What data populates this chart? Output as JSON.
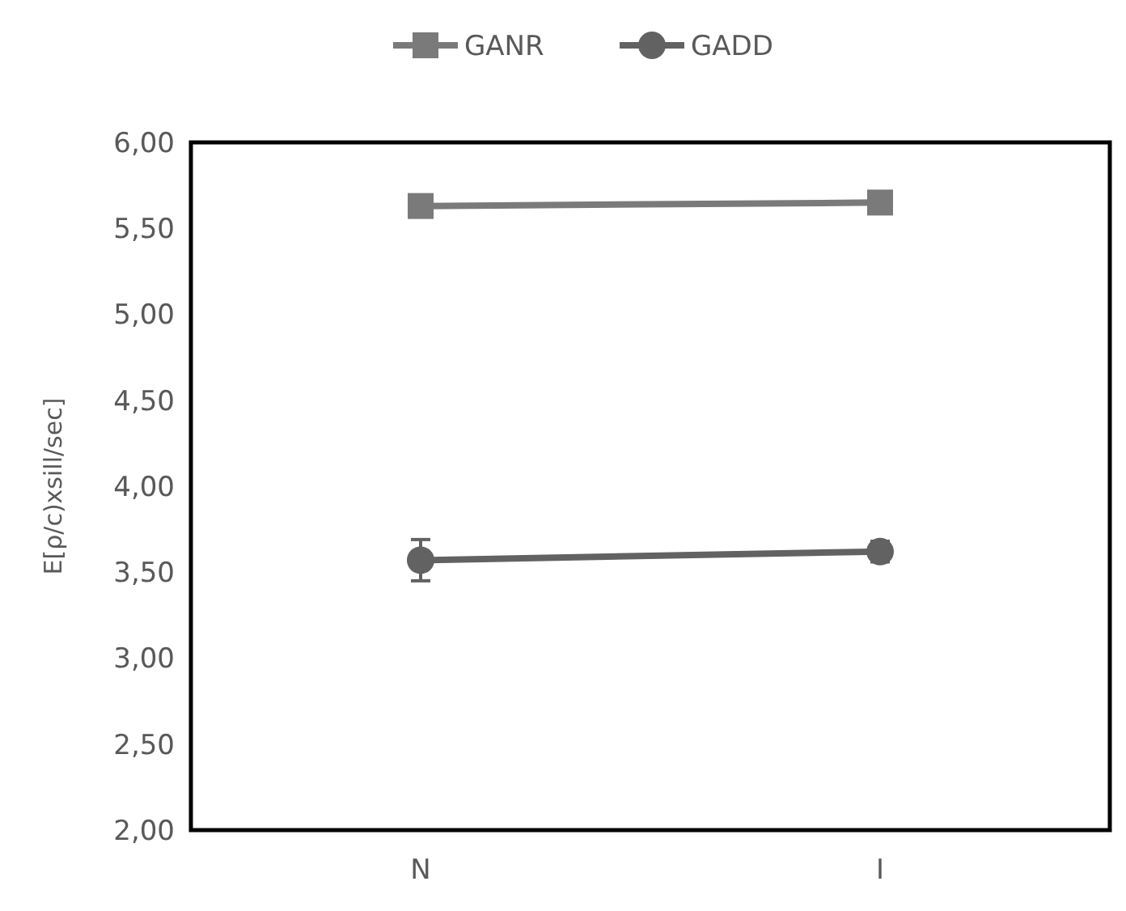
{
  "chart_data": {
    "type": "line",
    "ylabel": "E[ρ/c)xsill/sec]",
    "categories": [
      "N",
      "I"
    ],
    "series": [
      {
        "name": "GANR",
        "color": "#7a7a7a",
        "marker": "square",
        "values": [
          5.63,
          5.65
        ],
        "errors": [
          0.04,
          0.02
        ]
      },
      {
        "name": "GADD",
        "color": "#626262",
        "marker": "circle",
        "values": [
          3.57,
          3.62
        ],
        "errors": [
          0.12,
          0.06
        ]
      }
    ],
    "ylim": [
      2,
      6
    ],
    "yticks": [
      {
        "value": 2,
        "label": "2,00"
      },
      {
        "value": 2.5,
        "label": "2,50"
      },
      {
        "value": 3,
        "label": "3,00"
      },
      {
        "value": 3.5,
        "label": "3,50"
      },
      {
        "value": 4,
        "label": "4,00"
      },
      {
        "value": 4.5,
        "label": "4,50"
      },
      {
        "value": 5,
        "label": "5,00"
      },
      {
        "value": 5.5,
        "label": "5,50"
      },
      {
        "value": 6,
        "label": "6,00"
      }
    ],
    "grid": false,
    "legend": "top",
    "line_style": "solid"
  }
}
